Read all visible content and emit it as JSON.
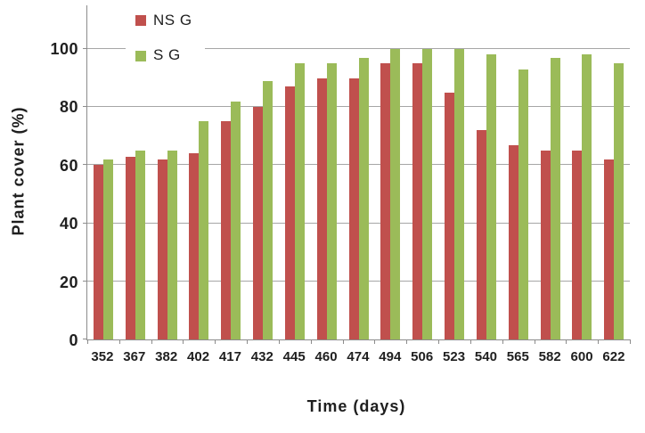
{
  "chart_data": {
    "type": "bar",
    "title": "",
    "xlabel": "Time (days)",
    "ylabel": "Plant cover (%)",
    "categories": [
      "352",
      "367",
      "382",
      "402",
      "417",
      "432",
      "445",
      "460",
      "474",
      "494",
      "506",
      "523",
      "540",
      "565",
      "582",
      "600",
      "622"
    ],
    "series": [
      {
        "name": "NS G",
        "color": "#c0504d",
        "values": [
          60,
          63,
          62,
          64,
          75,
          80,
          87,
          90,
          90,
          95,
          95,
          85,
          72,
          67,
          65,
          65,
          62
        ]
      },
      {
        "name": "S G",
        "color": "#9bbb59",
        "values": [
          62,
          65,
          65,
          75,
          82,
          89,
          95,
          95,
          97,
          100,
          100,
          100,
          98,
          93,
          97,
          98,
          95
        ]
      }
    ],
    "y_ticks": [
      0,
      20,
      40,
      60,
      80,
      100
    ],
    "ylim": [
      0,
      115
    ],
    "grid": true,
    "legend_position": "top-left-inside",
    "gridline_color": "#a6a6a6",
    "axis_color": "#8c8c8c"
  }
}
